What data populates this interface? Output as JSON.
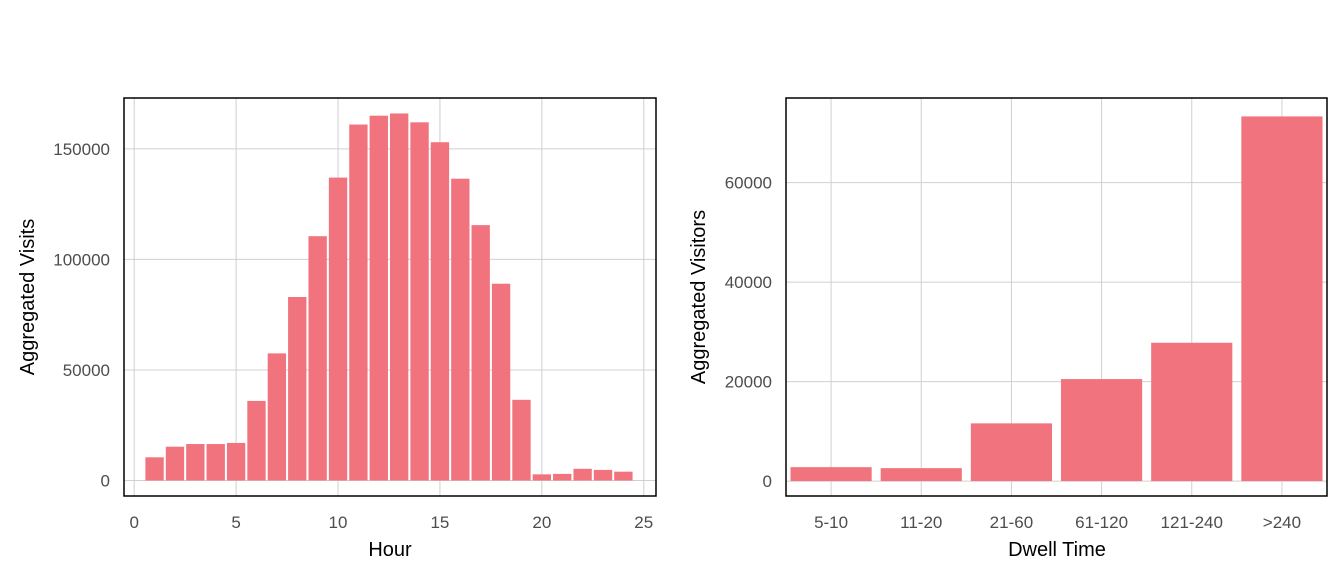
{
  "chart_data": [
    {
      "type": "bar",
      "xlabel": "Hour",
      "ylabel": "Aggregated Visits",
      "xlim": [
        -0.5,
        25.6
      ],
      "ylim": [
        -7000,
        173000
      ],
      "xticks": [
        0,
        5,
        10,
        15,
        20,
        25
      ],
      "yticks": [
        0,
        50000,
        100000,
        150000
      ],
      "bar_color": "#f0737e",
      "grid": true,
      "x": [
        1,
        2,
        3,
        4,
        5,
        6,
        7,
        8,
        9,
        10,
        11,
        12,
        13,
        14,
        15,
        16,
        17,
        18,
        19,
        20,
        21,
        22,
        23,
        24
      ],
      "values": [
        10500,
        15300,
        16500,
        16500,
        17000,
        36000,
        57500,
        83000,
        110500,
        137000,
        161000,
        165000,
        166000,
        162000,
        153000,
        136500,
        115500,
        89000,
        36500,
        2800,
        3000,
        5300,
        4800,
        4000
      ]
    },
    {
      "type": "bar",
      "xlabel": "Dwell Time",
      "ylabel": "Aggregated Visitors",
      "ylim": [
        -3000,
        77000
      ],
      "yticks": [
        0,
        20000,
        40000,
        60000
      ],
      "bar_color": "#f0737e",
      "grid": true,
      "categories": [
        "5-10",
        "11-20",
        "21-60",
        "61-120",
        "121-240",
        ">240"
      ],
      "values": [
        2800,
        2600,
        11600,
        20500,
        27800,
        73300
      ]
    }
  ]
}
